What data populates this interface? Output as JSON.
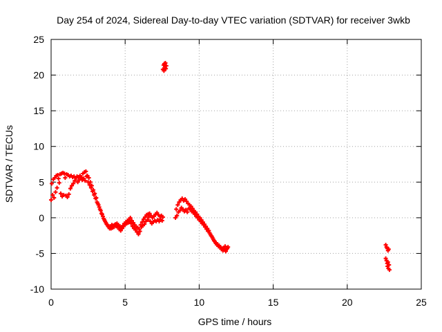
{
  "chart_data": {
    "type": "scatter",
    "title": "Day 254 of 2024, Sidereal Day-to-day VTEC variation (SDTVAR) for receiver 3wkb",
    "xlabel": "GPS time / hours",
    "ylabel": "SDTVAR / TECUs",
    "xlim": [
      0,
      25
    ],
    "ylim": [
      -10,
      25
    ],
    "xticks": [
      0,
      5,
      10,
      15,
      20,
      25
    ],
    "yticks": [
      -10,
      -5,
      0,
      5,
      10,
      15,
      20,
      25
    ],
    "grid": true,
    "marker_color": "#ff0000",
    "grid_color": "#a0a0a0",
    "series": [
      {
        "name": "SDTVAR",
        "points": [
          [
            0.0,
            2.5
          ],
          [
            0.05,
            4.8
          ],
          [
            0.1,
            3.2
          ],
          [
            0.15,
            5.4
          ],
          [
            0.2,
            2.8
          ],
          [
            0.25,
            5.6
          ],
          [
            0.3,
            3.6
          ],
          [
            0.35,
            5.9
          ],
          [
            0.4,
            4.2
          ],
          [
            0.45,
            6.0
          ],
          [
            0.5,
            5.5
          ],
          [
            0.55,
            4.9
          ],
          [
            0.6,
            6.1
          ],
          [
            0.65,
            3.4
          ],
          [
            0.7,
            6.2
          ],
          [
            0.75,
            3.0
          ],
          [
            0.8,
            6.3
          ],
          [
            0.85,
            3.2
          ],
          [
            0.9,
            6.2
          ],
          [
            0.95,
            5.6
          ],
          [
            1.0,
            3.1
          ],
          [
            1.05,
            6.1
          ],
          [
            1.1,
            2.9
          ],
          [
            1.15,
            6.0
          ],
          [
            1.2,
            3.3
          ],
          [
            1.25,
            5.8
          ],
          [
            1.3,
            4.1
          ],
          [
            1.35,
            5.9
          ],
          [
            1.4,
            4.5
          ],
          [
            1.45,
            5.7
          ],
          [
            1.5,
            4.8
          ],
          [
            1.55,
            5.8
          ],
          [
            1.6,
            5.2
          ],
          [
            1.65,
            5.6
          ],
          [
            1.7,
            5.6
          ],
          [
            1.75,
            5.8
          ],
          [
            1.8,
            5.0
          ],
          [
            1.85,
            5.7
          ],
          [
            1.9,
            5.3
          ],
          [
            1.95,
            5.9
          ],
          [
            2.0,
            5.6
          ],
          [
            2.05,
            5.7
          ],
          [
            2.1,
            5.3
          ],
          [
            2.15,
            6.2
          ],
          [
            2.2,
            5.5
          ],
          [
            2.25,
            6.4
          ],
          [
            2.3,
            5.2
          ],
          [
            2.35,
            6.5
          ],
          [
            2.4,
            5.8
          ],
          [
            2.45,
            5.9
          ],
          [
            2.5,
            5.0
          ],
          [
            2.55,
            5.6
          ],
          [
            2.6,
            4.6
          ],
          [
            2.65,
            5.0
          ],
          [
            2.7,
            4.2
          ],
          [
            2.75,
            4.5
          ],
          [
            2.8,
            3.7
          ],
          [
            2.85,
            3.9
          ],
          [
            2.9,
            3.2
          ],
          [
            2.95,
            3.4
          ],
          [
            3.0,
            2.7
          ],
          [
            3.05,
            2.8
          ],
          [
            3.1,
            2.2
          ],
          [
            3.15,
            2.0
          ],
          [
            3.2,
            1.8
          ],
          [
            3.25,
            1.5
          ],
          [
            3.3,
            1.2
          ],
          [
            3.35,
            1.0
          ],
          [
            3.4,
            0.6
          ],
          [
            3.45,
            0.5
          ],
          [
            3.5,
            0.2
          ],
          [
            3.55,
            -0.1
          ],
          [
            3.6,
            -0.3
          ],
          [
            3.65,
            -0.5
          ],
          [
            3.7,
            -0.7
          ],
          [
            3.75,
            -0.9
          ],
          [
            3.8,
            -1.0
          ],
          [
            3.85,
            -1.2
          ],
          [
            3.9,
            -1.3
          ],
          [
            3.95,
            -1.5
          ],
          [
            4.0,
            -1.2
          ],
          [
            4.05,
            -1.5
          ],
          [
            4.1,
            -1.0
          ],
          [
            4.15,
            -1.4
          ],
          [
            4.2,
            -1.1
          ],
          [
            4.25,
            -1.3
          ],
          [
            4.3,
            -1.0
          ],
          [
            4.35,
            -0.9
          ],
          [
            4.4,
            -1.2
          ],
          [
            4.45,
            -0.8
          ],
          [
            4.5,
            -1.3
          ],
          [
            4.55,
            -1.0
          ],
          [
            4.6,
            -1.6
          ],
          [
            4.65,
            -1.2
          ],
          [
            4.7,
            -1.8
          ],
          [
            4.75,
            -1.4
          ],
          [
            4.8,
            -1.5
          ],
          [
            4.85,
            -1.1
          ],
          [
            4.9,
            -1.2
          ],
          [
            4.95,
            -0.8
          ],
          [
            5.0,
            -1.0
          ],
          [
            5.05,
            -0.6
          ],
          [
            5.1,
            -0.8
          ],
          [
            5.15,
            -0.4
          ],
          [
            5.2,
            -0.7
          ],
          [
            5.25,
            -0.2
          ],
          [
            5.3,
            -0.6
          ],
          [
            5.35,
            0.0
          ],
          [
            5.4,
            -0.8
          ],
          [
            5.45,
            -0.4
          ],
          [
            5.5,
            -1.2
          ],
          [
            5.55,
            -0.7
          ],
          [
            5.6,
            -1.5
          ],
          [
            5.65,
            -1.0
          ],
          [
            5.7,
            -1.7
          ],
          [
            5.75,
            -1.3
          ],
          [
            5.8,
            -2.0
          ],
          [
            5.85,
            -1.4
          ],
          [
            5.9,
            -2.3
          ],
          [
            5.95,
            -1.6
          ],
          [
            6.0,
            -1.9
          ],
          [
            6.05,
            -1.0
          ],
          [
            6.1,
            -1.3
          ],
          [
            6.15,
            -0.6
          ],
          [
            6.2,
            -1.1
          ],
          [
            6.25,
            -0.2
          ],
          [
            6.3,
            -0.9
          ],
          [
            6.35,
            0.1
          ],
          [
            6.4,
            -0.5
          ],
          [
            6.45,
            0.4
          ],
          [
            6.5,
            -0.3
          ],
          [
            6.55,
            0.5
          ],
          [
            6.6,
            0.1
          ],
          [
            6.65,
            0.6
          ],
          [
            6.7,
            -0.5
          ],
          [
            6.75,
            0.3
          ],
          [
            6.8,
            -0.8
          ],
          [
            6.85,
            0.0
          ],
          [
            6.9,
            -0.6
          ],
          [
            6.95,
            0.2
          ],
          [
            7.0,
            -0.4
          ],
          [
            7.05,
            0.5
          ],
          [
            7.1,
            -0.5
          ],
          [
            7.15,
            0.7
          ],
          [
            7.2,
            -0.3
          ],
          [
            7.25,
            0.4
          ],
          [
            7.3,
            -0.5
          ],
          [
            7.35,
            0.2
          ],
          [
            7.4,
            -0.2
          ],
          [
            7.45,
            0.3
          ],
          [
            7.5,
            -0.4
          ],
          [
            7.55,
            0.1
          ],
          [
            7.55,
            20.8
          ],
          [
            7.6,
            21.4
          ],
          [
            7.62,
            20.6
          ],
          [
            7.65,
            21.6
          ],
          [
            7.68,
            21.0
          ],
          [
            7.72,
            21.7
          ],
          [
            7.75,
            20.9
          ],
          [
            7.78,
            21.3
          ],
          [
            8.4,
            0.0
          ],
          [
            8.45,
            1.2
          ],
          [
            8.5,
            0.3
          ],
          [
            8.55,
            1.8
          ],
          [
            8.6,
            0.8
          ],
          [
            8.65,
            2.2
          ],
          [
            8.7,
            1.0
          ],
          [
            8.75,
            2.5
          ],
          [
            8.8,
            1.4
          ],
          [
            8.85,
            2.7
          ],
          [
            8.9,
            1.2
          ],
          [
            8.95,
            2.4
          ],
          [
            9.0,
            0.9
          ],
          [
            9.05,
            2.6
          ],
          [
            9.1,
            1.1
          ],
          [
            9.15,
            2.3
          ],
          [
            9.2,
            0.8
          ],
          [
            9.25,
            2.0
          ],
          [
            9.3,
            1.3
          ],
          [
            9.35,
            1.8
          ],
          [
            9.4,
            1.2
          ],
          [
            9.45,
            1.6
          ],
          [
            9.5,
            0.9
          ],
          [
            9.55,
            1.3
          ],
          [
            9.6,
            0.7
          ],
          [
            9.65,
            1.0
          ],
          [
            9.7,
            0.5
          ],
          [
            9.75,
            0.8
          ],
          [
            9.8,
            0.2
          ],
          [
            9.85,
            0.5
          ],
          [
            9.9,
            0.0
          ],
          [
            9.95,
            0.2
          ],
          [
            10.0,
            -0.3
          ],
          [
            10.05,
            0.0
          ],
          [
            10.1,
            -0.5
          ],
          [
            10.15,
            -0.3
          ],
          [
            10.2,
            -0.8
          ],
          [
            10.25,
            -0.6
          ],
          [
            10.3,
            -1.0
          ],
          [
            10.35,
            -0.9
          ],
          [
            10.4,
            -1.3
          ],
          [
            10.45,
            -1.2
          ],
          [
            10.5,
            -1.6
          ],
          [
            10.55,
            -1.5
          ],
          [
            10.6,
            -1.9
          ],
          [
            10.65,
            -1.8
          ],
          [
            10.7,
            -2.1
          ],
          [
            10.75,
            -2.3
          ],
          [
            10.8,
            -2.5
          ],
          [
            10.85,
            -2.6
          ],
          [
            10.9,
            -2.8
          ],
          [
            10.95,
            -3.0
          ],
          [
            11.0,
            -3.2
          ],
          [
            11.05,
            -3.3
          ],
          [
            11.1,
            -3.5
          ],
          [
            11.15,
            -3.6
          ],
          [
            11.2,
            -3.8
          ],
          [
            11.25,
            -3.7
          ],
          [
            11.3,
            -4.0
          ],
          [
            11.35,
            -3.9
          ],
          [
            11.4,
            -4.2
          ],
          [
            11.45,
            -4.1
          ],
          [
            11.5,
            -4.4
          ],
          [
            11.55,
            -4.3
          ],
          [
            11.6,
            -4.6
          ],
          [
            11.65,
            -4.2
          ],
          [
            11.7,
            -4.5
          ],
          [
            11.75,
            -4.0
          ],
          [
            11.8,
            -4.7
          ],
          [
            11.85,
            -4.4
          ],
          [
            11.9,
            -4.3
          ],
          [
            11.95,
            -4.1
          ],
          [
            22.6,
            -3.8
          ],
          [
            22.65,
            -4.1
          ],
          [
            22.7,
            -4.3
          ],
          [
            22.75,
            -4.6
          ],
          [
            22.8,
            -4.4
          ],
          [
            22.6,
            -5.7
          ],
          [
            22.65,
            -6.0
          ],
          [
            22.7,
            -6.4
          ],
          [
            22.72,
            -6.8
          ],
          [
            22.75,
            -6.2
          ],
          [
            22.78,
            -7.1
          ],
          [
            22.82,
            -6.6
          ],
          [
            22.85,
            -7.3
          ]
        ]
      }
    ]
  }
}
